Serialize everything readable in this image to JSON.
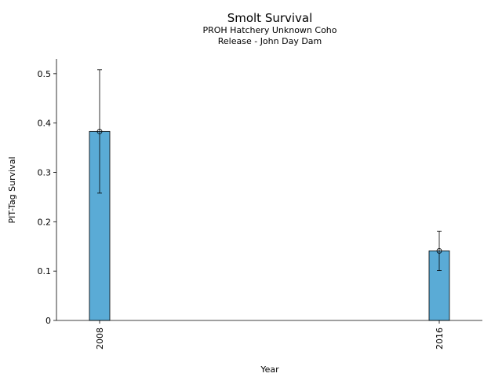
{
  "chart_data": {
    "type": "bar",
    "title": "Smolt Survival",
    "subtitle": [
      "PROH Hatchery Unknown Coho",
      "Release - John Day Dam"
    ],
    "xlabel": "Year",
    "ylabel": "PIT-Tag Survival",
    "x": [
      2008,
      2016
    ],
    "categories": [
      "2008",
      "2016"
    ],
    "values": [
      0.383,
      0.141
    ],
    "error_low": [
      0.258,
      0.101
    ],
    "error_high": [
      0.508,
      0.181
    ],
    "ylim": [
      0,
      0.53
    ],
    "yticks": [
      0,
      0.1,
      0.2,
      0.3,
      0.4,
      0.5
    ],
    "ytick_labels": [
      "0",
      "0.1",
      "0.2",
      "0.3",
      "0.4",
      "0.5"
    ],
    "grid": false,
    "bar_color": "#5aabd6"
  }
}
